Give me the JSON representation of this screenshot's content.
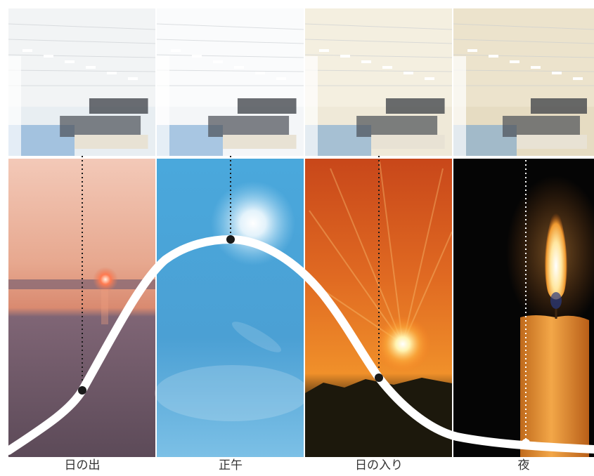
{
  "columns": [
    {
      "label": "日の出",
      "office_tone": "#e8eef2",
      "ceiling_tone": "#f2f4f5"
    },
    {
      "label": "正午",
      "office_tone": "#f4f6f8",
      "ceiling_tone": "#fafbfc"
    },
    {
      "label": "日の入り",
      "office_tone": "#efe9d8",
      "ceiling_tone": "#f4efe0"
    },
    {
      "label": "夜",
      "office_tone": "#e6dcc2",
      "ceiling_tone": "#ece3cc"
    }
  ],
  "colors": {
    "sunrise_sky_top": "#f3c9b8",
    "sunrise_sky_mid": "#e29577",
    "sunrise_water": "#8c6f78",
    "noon_sky_top": "#4aa8dc",
    "noon_sky_bottom": "#2f8ec8",
    "sunset_top": "#e05a1c",
    "sunset_mid": "#f08a24",
    "sunset_ground": "#2a2210",
    "night_bg": "#050505",
    "candle_body": "#f0a040",
    "flame": "#fff2c0",
    "curve": "#ffffff",
    "marker": "#1a1a1a",
    "label_text": "#333333"
  }
}
